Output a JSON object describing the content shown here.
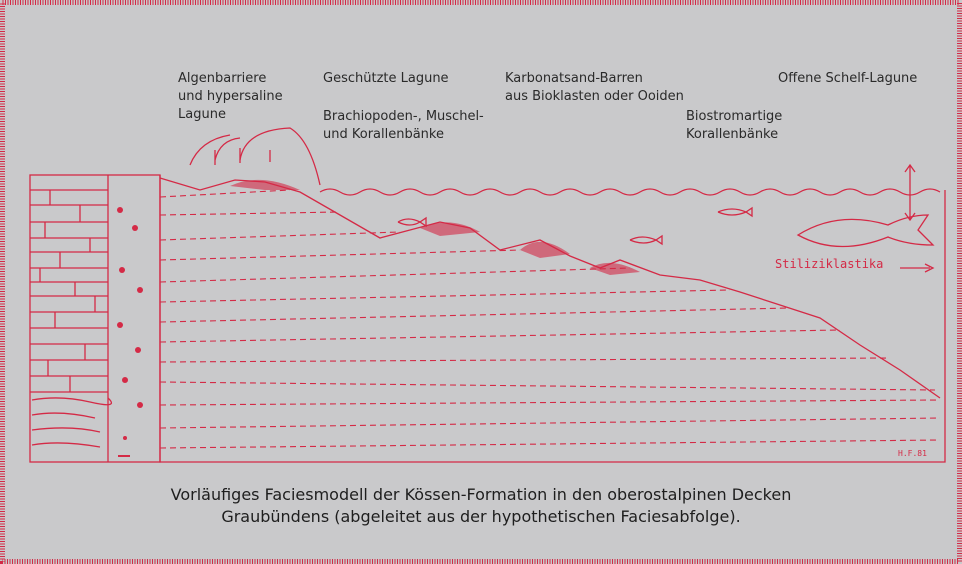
{
  "labels": [
    {
      "lines": [
        "Algenbarriere",
        "und hypersaline",
        "Lagune"
      ]
    },
    {
      "lines": [
        "Geschützte Lagune"
      ]
    },
    {
      "lines": [
        "Brachiopoden-, Muschel-",
        "und Korallenbänke"
      ]
    },
    {
      "lines": [
        "Karbonatsand-Barren",
        "aus Bioklasten oder Ooiden"
      ]
    },
    {
      "lines": [
        "Biostromartige",
        "Korallenbänke"
      ]
    },
    {
      "lines": [
        "Offene Schelf-Lagune"
      ]
    }
  ],
  "drawing": {
    "stiliziklastika": "Stiliziklastika",
    "signature": "H.F.81"
  },
  "caption": [
    "Vorläufiges Faciesmodell der Kössen-Formation in den oberostalpinen Decken",
    "Graubündens (abgeleitet aus der hypothetischen Faciesabfolge)."
  ]
}
